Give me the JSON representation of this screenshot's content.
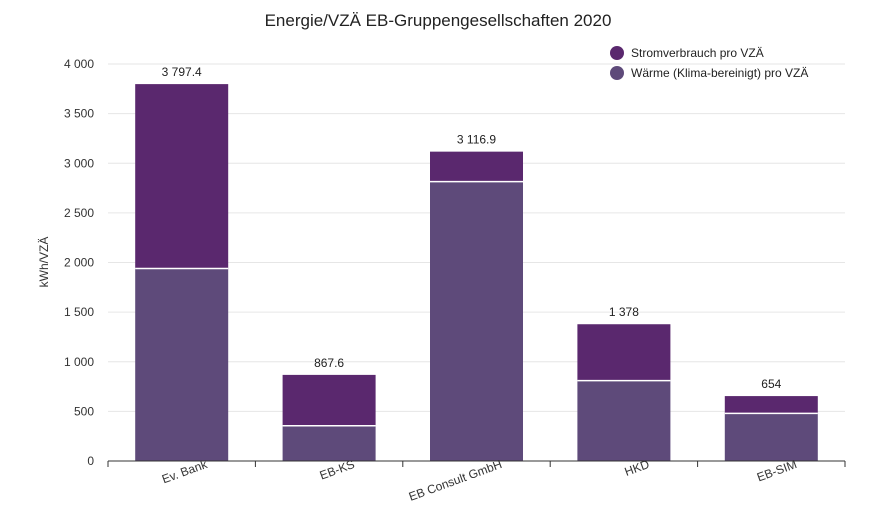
{
  "chart_data": {
    "type": "bar",
    "stacked": true,
    "title": "Energie/VZÄ EB-Gruppengesellschaften 2020",
    "xlabel": "",
    "ylabel": "kWh/VZÄ",
    "ylim": [
      0,
      4000
    ],
    "yticks": [
      0,
      500,
      1000,
      1500,
      2000,
      2500,
      3000,
      3500,
      4000
    ],
    "ytick_labels": [
      "0",
      "500",
      "1 000",
      "1 500",
      "2 000",
      "2 500",
      "3 000",
      "3 500",
      "4 000"
    ],
    "grid": true,
    "legend_position": "top-right",
    "categories": [
      "Ev. Bank",
      "EB-KS",
      "EB Consult GmbH",
      "HKD",
      "EB-SIM"
    ],
    "series": [
      {
        "name": "Wärme (Klima-bereinigt) pro VZÄ",
        "color": "#5e4a7a",
        "values": [
          1940,
          355,
          2815,
          810,
          480
        ]
      },
      {
        "name": "Stromverbrauch pro VZÄ",
        "color": "#5a286e",
        "values": [
          1857.4,
          512.6,
          301.9,
          568,
          174
        ]
      }
    ],
    "totals": [
      3797.4,
      867.6,
      3116.9,
      1378,
      654
    ],
    "total_labels": [
      "3 797.4",
      "867.6",
      "3 116.9",
      "1 378",
      "654"
    ]
  }
}
